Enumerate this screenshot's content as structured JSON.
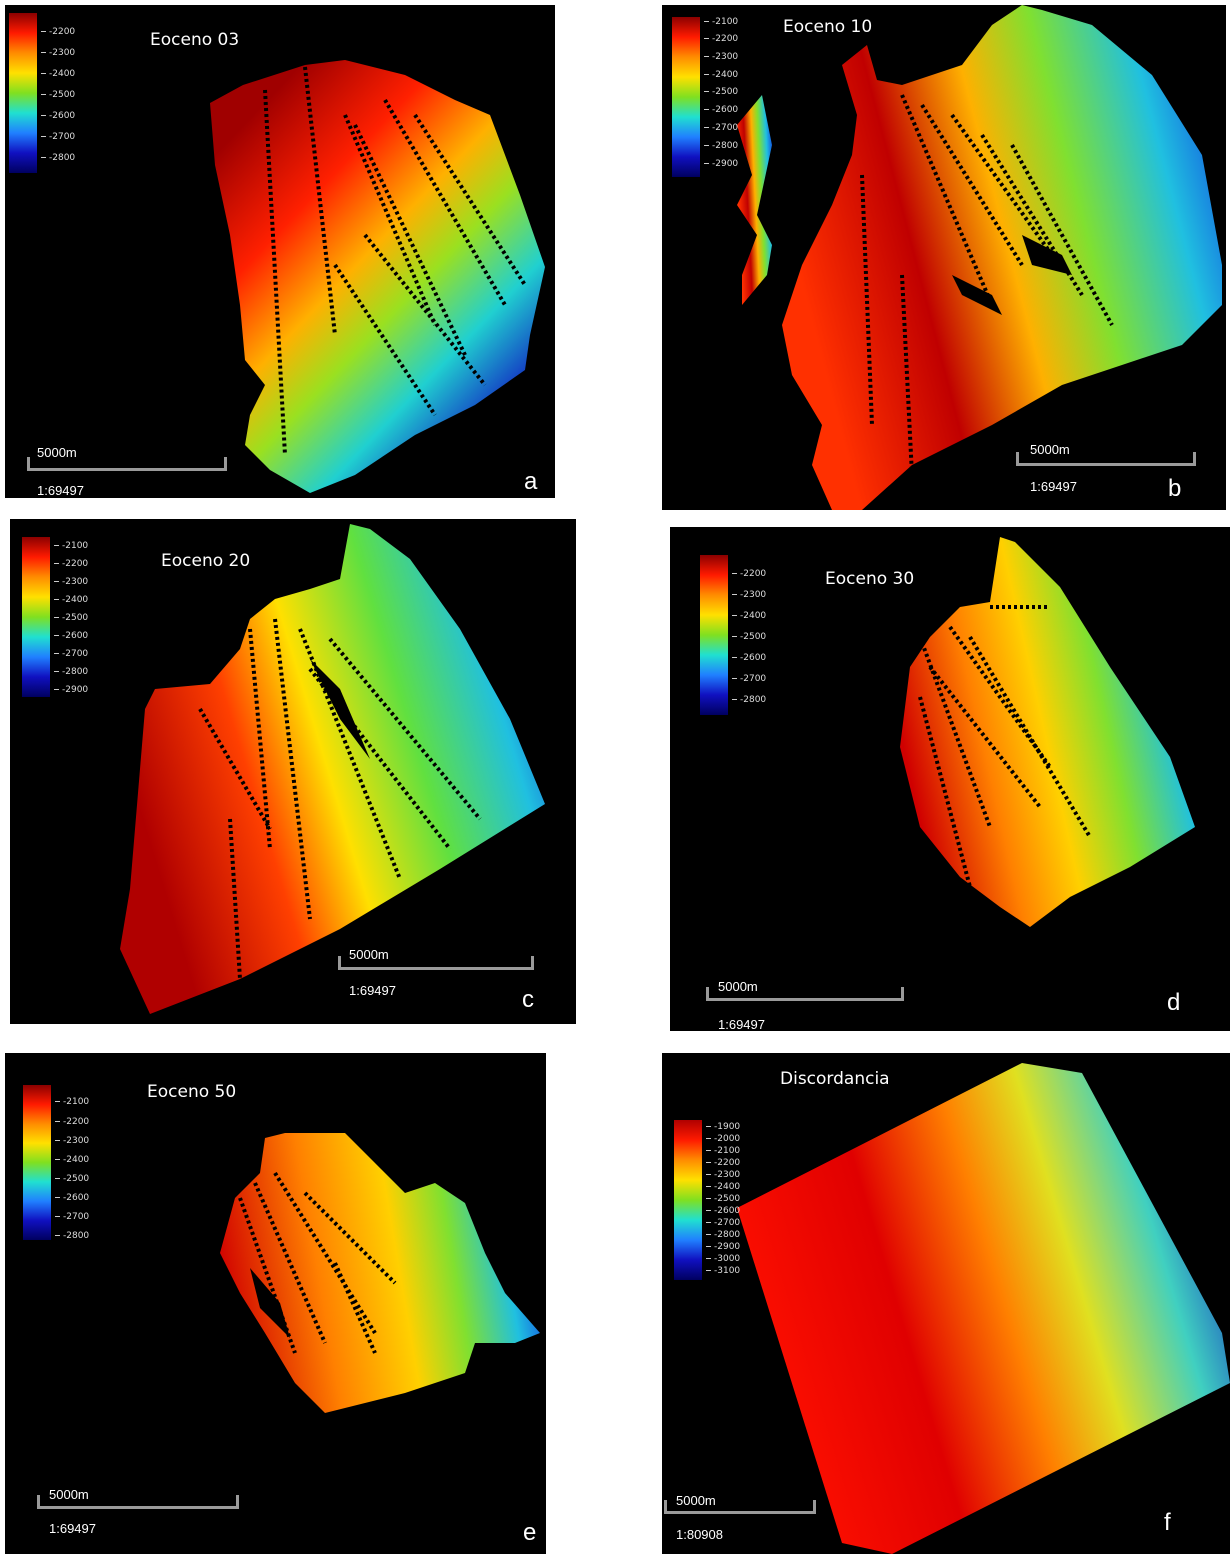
{
  "colors": {
    "background": "#000000",
    "ramp": [
      "#8b0000",
      "#ff1a00",
      "#ff8c00",
      "#ffe000",
      "#a8e000",
      "#40d040",
      "#20e0d0",
      "#2080ff",
      "#1010c0",
      "#000060"
    ]
  },
  "panels": [
    {
      "letter": "a",
      "title": "Eoceno 03",
      "legend": [
        "-2200",
        "-2300",
        "-2400",
        "-2500",
        "-2600",
        "-2700",
        "-2800"
      ],
      "scale_label": "5000m",
      "ratio": "1:69497"
    },
    {
      "letter": "b",
      "title": "Eoceno 10",
      "legend": [
        "-2100",
        "-2200",
        "-2300",
        "-2400",
        "-2500",
        "-2600",
        "-2700",
        "-2800",
        "-2900"
      ],
      "scale_label": "5000m",
      "ratio": "1:69497"
    },
    {
      "letter": "c",
      "title": "Eoceno 20",
      "legend": [
        "-2100",
        "-2200",
        "-2300",
        "-2400",
        "-2500",
        "-2600",
        "-2700",
        "-2800",
        "-2900"
      ],
      "scale_label": "5000m",
      "ratio": "1:69497"
    },
    {
      "letter": "d",
      "title": "Eoceno 30",
      "legend": [
        "-2200",
        "-2300",
        "-2400",
        "-2500",
        "-2600",
        "-2700",
        "-2800"
      ],
      "scale_label": "5000m",
      "ratio": "1:69497"
    },
    {
      "letter": "e",
      "title": "Eoceno 50",
      "legend": [
        "-2100",
        "-2200",
        "-2300",
        "-2400",
        "-2500",
        "-2600",
        "-2700",
        "-2800"
      ],
      "scale_label": "5000m",
      "ratio": "1:69497"
    },
    {
      "letter": "f",
      "title": "Discordancia",
      "legend": [
        "-1900",
        "-2000",
        "-2100",
        "-2200",
        "-2300",
        "-2400",
        "-2500",
        "-2600",
        "-2700",
        "-2800",
        "-2900",
        "-3000",
        "-3100"
      ],
      "scale_label": "5000m",
      "ratio": "1:80908"
    }
  ]
}
